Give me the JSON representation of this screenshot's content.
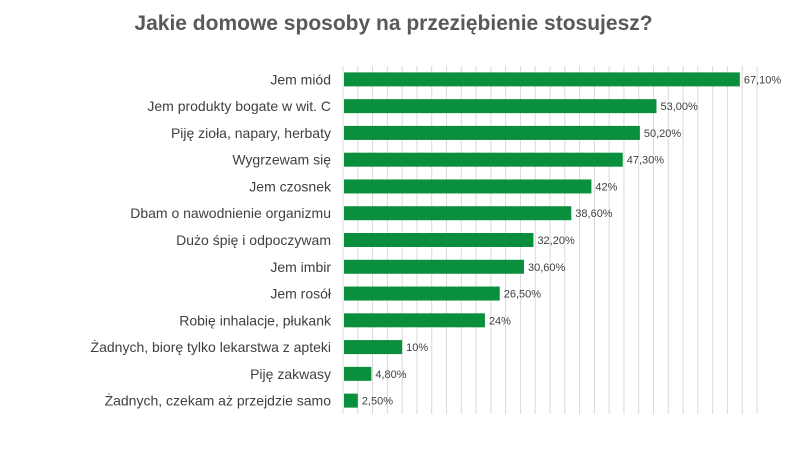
{
  "chart_data": {
    "type": "bar",
    "orientation": "horizontal",
    "title": "Jakie domowe sposoby na przeziębienie stosujesz?",
    "xlabel": "",
    "ylabel": "",
    "xlim": [
      0,
      70
    ],
    "grid": true,
    "legend": "none",
    "bar_color": "#0A8F3C",
    "categories": [
      "Jem miód",
      "Jem produkty bogate w wit. C",
      "Piję zioła, napary, herbaty",
      "Wygrzewam się",
      "Jem czosnek",
      "Dbam o nawodnienie organizmu",
      "Dużo śpię i odpoczywam",
      "Jem imbir",
      "Jem rosół",
      "Robię inhalacje, płukank",
      "Żadnych, biorę tylko lekarstwa z apteki",
      "Piję zakwasy",
      "Żadnych, czekam aż przejdzie samo"
    ],
    "values": [
      67.1,
      53.0,
      50.2,
      47.3,
      42,
      38.6,
      32.2,
      30.6,
      26.5,
      24,
      10,
      4.8,
      2.5
    ],
    "data_labels": [
      "67,10%",
      "53,00%",
      "50,20%",
      "47,30%",
      "42%",
      "38,60%",
      "32,20%",
      "30,60%",
      "26,50%",
      "24%",
      "10%",
      "4,80%",
      "2,50%"
    ]
  }
}
